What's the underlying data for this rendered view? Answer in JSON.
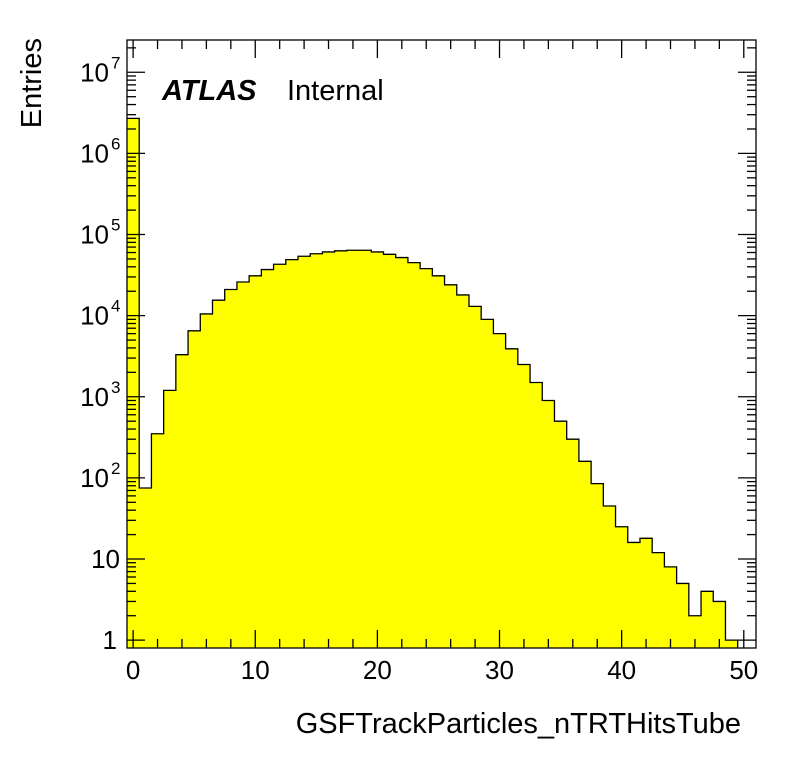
{
  "chart_data": {
    "type": "bar",
    "histogram": true,
    "title": "",
    "xlabel": "GSFTrackParticles_nTRTHitsTube",
    "ylabel": "Entries",
    "label_bold": "ATLAS",
    "label_status": "Internal",
    "xlim": [
      -0.5,
      51
    ],
    "ylim": [
      0.8,
      25000000
    ],
    "log_y": true,
    "grid": false,
    "legend": "none",
    "fill_color": "#ffff00",
    "line_color": "#000000",
    "bin_width": 1,
    "bin_low_edges": [
      -0.5,
      0.5,
      1.5,
      2.5,
      3.5,
      4.5,
      5.5,
      6.5,
      7.5,
      8.5,
      9.5,
      10.5,
      11.5,
      12.5,
      13.5,
      14.5,
      15.5,
      16.5,
      17.5,
      18.5,
      19.5,
      20.5,
      21.5,
      22.5,
      23.5,
      24.5,
      25.5,
      26.5,
      27.5,
      28.5,
      29.5,
      30.5,
      31.5,
      32.5,
      33.5,
      34.5,
      35.5,
      36.5,
      37.5,
      38.5,
      39.5,
      40.5,
      41.5,
      42.5,
      43.5,
      44.5,
      45.5,
      46.5,
      47.5,
      48.5
    ],
    "values": [
      2700000,
      75,
      350,
      1200,
      3300,
      6500,
      10500,
      15500,
      21000,
      26000,
      31000,
      37000,
      43000,
      49000,
      54000,
      58000,
      61000,
      63000,
      64000,
      64000,
      61000,
      57000,
      52000,
      45000,
      38000,
      31000,
      24000,
      18000,
      13000,
      9000,
      6000,
      3900,
      2500,
      1500,
      900,
      500,
      300,
      160,
      85,
      45,
      25,
      16,
      18,
      12,
      8,
      5,
      2,
      4,
      3,
      1
    ],
    "x_ticks": [
      0,
      10,
      20,
      30,
      40,
      50
    ],
    "x_tick_labels": [
      "0",
      "10",
      "20",
      "30",
      "40",
      "50"
    ],
    "y_ticks": [
      1,
      10,
      100,
      1000,
      10000,
      100000,
      1000000,
      10000000
    ],
    "y_tick_labels": [
      {
        "base": "1",
        "exp": ""
      },
      {
        "base": "10",
        "exp": ""
      },
      {
        "base": "10",
        "exp": "2"
      },
      {
        "base": "10",
        "exp": "3"
      },
      {
        "base": "10",
        "exp": "4"
      },
      {
        "base": "10",
        "exp": "5"
      },
      {
        "base": "10",
        "exp": "6"
      },
      {
        "base": "10",
        "exp": "7"
      }
    ]
  }
}
